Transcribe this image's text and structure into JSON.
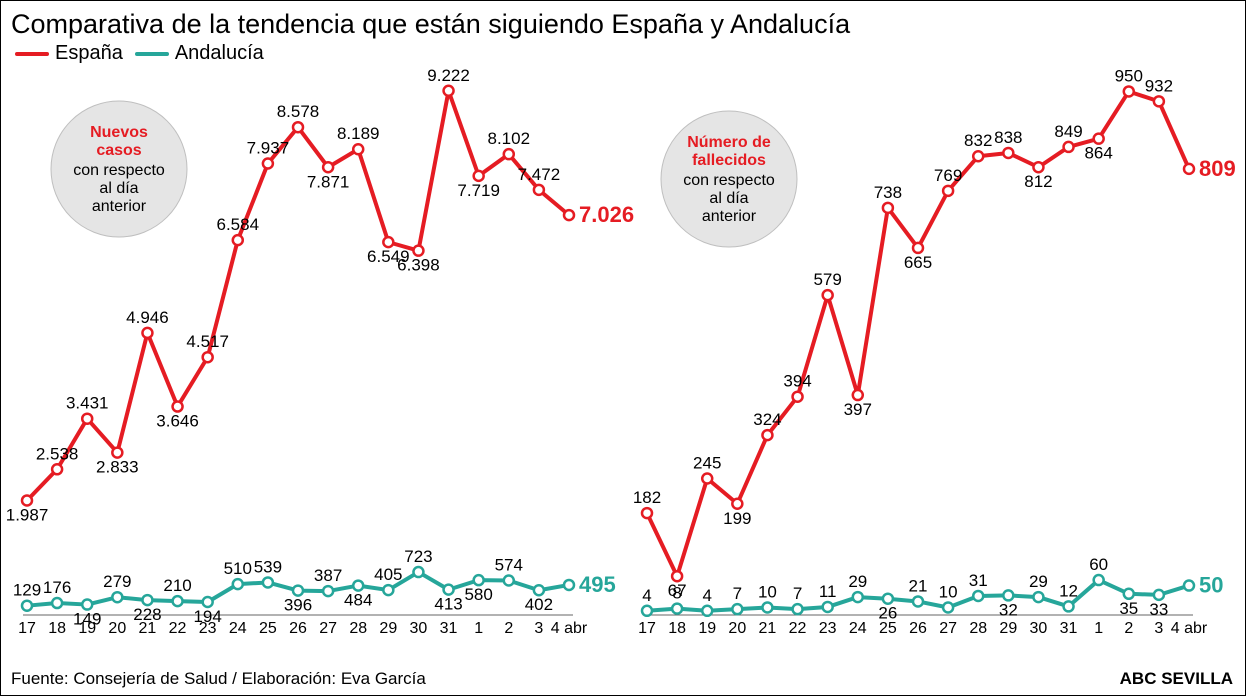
{
  "title": "Comparativa de la tendencia que están siguiendo España y Andalucía",
  "legend": {
    "spain": "España",
    "andalucia": "Andalucía"
  },
  "colors": {
    "spain": "#e51c23",
    "andalucia": "#26a69a",
    "badge_fill": "#e5e5e5",
    "badge_stroke": "#bfbfbf",
    "axis": "#666666",
    "background": "#ffffff"
  },
  "style": {
    "line_width": 4,
    "marker_radius": 5,
    "value_fontsize": 17,
    "end_value_fontsize": 22,
    "xaxis_fontsize": 16,
    "title_fontsize": 27,
    "legend_fontsize": 20,
    "badge_fontsize": 16
  },
  "xaxis_labels": [
    "17",
    "18",
    "19",
    "20",
    "21",
    "22",
    "23",
    "24",
    "25",
    "26",
    "27",
    "28",
    "29",
    "30",
    "31",
    "1",
    "2",
    "3",
    "4 abr"
  ],
  "panel_cases": {
    "type": "line",
    "badge": {
      "line1": "Nuevos",
      "line2": "casos",
      "line3": "con respecto",
      "line4": "al día",
      "line5": "anterior"
    },
    "y_min": 0,
    "y_max": 9500,
    "end_value_spain": "7.026",
    "end_value_andalucia": "495",
    "spain": [
      1987,
      2538,
      3431,
      2833,
      4946,
      3646,
      4517,
      6584,
      7937,
      8578,
      7871,
      8189,
      6549,
      6398,
      9222,
      7719,
      8102,
      7472,
      7026
    ],
    "spain_lab": [
      "1.987",
      "2.538",
      "3.431",
      "2.833",
      "4.946",
      "3.646",
      "4.517",
      "6.584",
      "7.937",
      "8.578",
      "7.871",
      "8.189",
      "6.549",
      "6.398",
      "9.222",
      "7.719",
      "8.102",
      "7.472",
      "7.026"
    ],
    "andalucia": [
      129,
      176,
      149,
      279,
      228,
      210,
      194,
      510,
      539,
      396,
      387,
      484,
      405,
      723,
      413,
      580,
      574,
      402,
      495
    ],
    "andalucia_lab": [
      "129",
      "176",
      "149",
      "279",
      "228",
      "210",
      "194",
      "510",
      "539",
      "396",
      "387",
      "484",
      "405",
      "723",
      "413",
      "580",
      "574",
      "402",
      "495"
    ],
    "spain_label_pos": [
      "b",
      "a",
      "a",
      "b",
      "a",
      "b",
      "a",
      "a",
      "a",
      "a",
      "b",
      "a",
      "b",
      "b",
      "a",
      "b",
      "a",
      "a",
      ""
    ],
    "andalucia_label_pos": [
      "a",
      "a",
      "b",
      "a",
      "b",
      "a",
      "b",
      "a",
      "a",
      "b",
      "a",
      "b",
      "a",
      "a",
      "b",
      "b",
      "a",
      "b",
      ""
    ]
  },
  "panel_deaths": {
    "type": "line",
    "badge": {
      "line1": "Número de",
      "line2": "fallecidos",
      "line3": "con respecto",
      "line4": "al día",
      "line5": "anterior"
    },
    "y_min": 0,
    "y_max": 980,
    "end_value_spain": "809",
    "end_value_andalucia": "50",
    "spain": [
      182,
      67,
      245,
      199,
      324,
      394,
      579,
      397,
      738,
      665,
      769,
      832,
      838,
      812,
      849,
      864,
      950,
      932,
      809
    ],
    "spain_lab": [
      "182",
      "67",
      "245",
      "199",
      "324",
      "394",
      "579",
      "397",
      "738",
      "665",
      "769",
      "832",
      "838",
      "812",
      "849",
      "864",
      "950",
      "932",
      "809"
    ],
    "andalucia": [
      4,
      8,
      4,
      7,
      10,
      7,
      11,
      29,
      26,
      21,
      10,
      31,
      32,
      29,
      12,
      60,
      35,
      33,
      50
    ],
    "andalucia_lab": [
      "4",
      "8",
      "4",
      "7",
      "10",
      "7",
      "11",
      "29",
      "26",
      "21",
      "10",
      "31",
      "32",
      "29",
      "12",
      "60",
      "35",
      "33",
      "50"
    ],
    "spain_label_pos": [
      "a",
      "b",
      "a",
      "b",
      "a",
      "a",
      "a",
      "b",
      "a",
      "b",
      "a",
      "a",
      "a",
      "b",
      "a",
      "b",
      "a",
      "a",
      ""
    ],
    "andalucia_label_pos": [
      "a",
      "a",
      "a",
      "a",
      "a",
      "a",
      "a",
      "a",
      "b",
      "a",
      "a",
      "a",
      "b",
      "a",
      "a",
      "a",
      "b",
      "b",
      ""
    ]
  },
  "footer": "Fuente: Consejería de Salud / Elaboración: Eva García",
  "footer_right": "ABC SEVILLA"
}
